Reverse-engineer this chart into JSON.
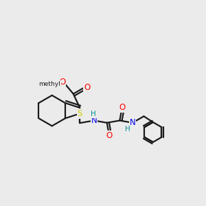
{
  "background_color": "#ebebeb",
  "bond_color": "#1a1a1a",
  "atom_colors": {
    "S": "#cccc00",
    "N": "#0000ee",
    "O": "#ff0000",
    "H": "#009090",
    "C": "#1a1a1a"
  },
  "figsize": [
    3.0,
    3.0
  ],
  "dpi": 100
}
